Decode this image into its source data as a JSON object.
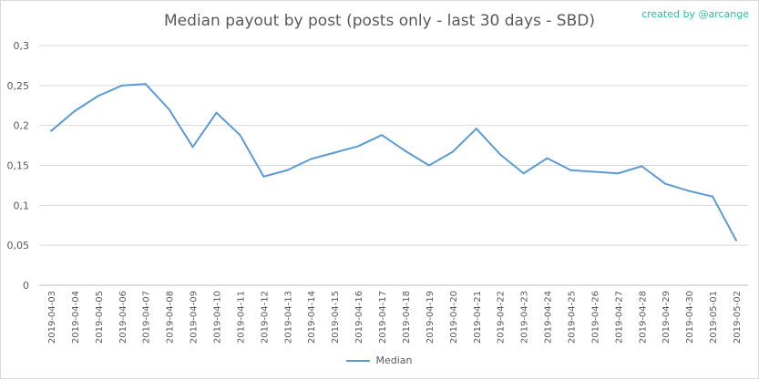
{
  "credit": "created by @arcange",
  "chart_data": {
    "type": "line",
    "title": "Median payout by post (posts only - last 30 days - SBD)",
    "xlabel": "",
    "ylabel": "",
    "ylim": [
      0,
      0.3
    ],
    "yticks": [
      "0",
      "0,05",
      "0,1",
      "0,15",
      "0,2",
      "0,25",
      "0,3"
    ],
    "grid": true,
    "legend": "bottom",
    "color": "#5b9bd5",
    "categories": [
      "2019-04-03",
      "2019-04-04",
      "2019-04-05",
      "2019-04-06",
      "2019-04-07",
      "2019-04-08",
      "2019-04-09",
      "2019-04-10",
      "2019-04-11",
      "2019-04-12",
      "2019-04-13",
      "2019-04-14",
      "2019-04-15",
      "2019-04-16",
      "2019-04-17",
      "2019-04-18",
      "2019-04-19",
      "2019-04-20",
      "2019-04-21",
      "2019-04-22",
      "2019-04-23",
      "2019-04-24",
      "2019-04-25",
      "2019-04-26",
      "2019-04-27",
      "2019-04-28",
      "2019-04-29",
      "2019-04-30",
      "2019-05-01",
      "2019-05-02"
    ],
    "series": [
      {
        "name": "Median",
        "values": [
          0.193,
          0.218,
          0.237,
          0.25,
          0.252,
          0.22,
          0.173,
          0.216,
          0.188,
          0.136,
          0.144,
          0.158,
          0.166,
          0.174,
          0.188,
          0.168,
          0.15,
          0.167,
          0.196,
          0.164,
          0.14,
          0.159,
          0.144,
          0.142,
          0.14,
          0.149,
          0.127,
          0.118,
          0.111,
          0.056
        ]
      }
    ]
  }
}
